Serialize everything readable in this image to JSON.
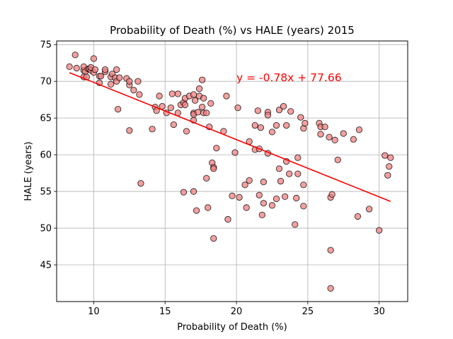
{
  "chart_data": {
    "type": "scatter",
    "title": "Probability of Death (%) vs HALE (years) 2015",
    "xlabel": "Probability of Death (%)",
    "ylabel": "HALE (years)",
    "xlim": [
      7.4,
      32.0
    ],
    "ylim": [
      40.0,
      75.5
    ],
    "xticks": [
      10,
      15,
      20,
      25,
      30
    ],
    "yticks": [
      45,
      50,
      55,
      60,
      65,
      70,
      75
    ],
    "grid": true,
    "marker_color": "#f08080",
    "marker_edge": "#000000",
    "line_color": "#ff0000",
    "annotation": {
      "text": "y = -0.78x + 77.66",
      "x": 20.0,
      "y": 70.0,
      "color": "#ff0000"
    },
    "regression": {
      "slope": -0.78,
      "intercept": 77.66,
      "x_range": [
        8.3,
        30.8
      ]
    },
    "points": [
      [
        8.3,
        72.0
      ],
      [
        8.7,
        73.6
      ],
      [
        8.8,
        71.8
      ],
      [
        9.3,
        71.5
      ],
      [
        9.3,
        72.0
      ],
      [
        9.4,
        71.3
      ],
      [
        9.3,
        70.6
      ],
      [
        9.5,
        70.6
      ],
      [
        9.6,
        71.7
      ],
      [
        9.7,
        71.7
      ],
      [
        9.8,
        71.5
      ],
      [
        9.8,
        71.9
      ],
      [
        10.0,
        71.2
      ],
      [
        10.0,
        73.1
      ],
      [
        10.1,
        71.6
      ],
      [
        10.4,
        70.7
      ],
      [
        10.5,
        70.7
      ],
      [
        10.4,
        69.8
      ],
      [
        10.8,
        71.3
      ],
      [
        10.8,
        71.6
      ],
      [
        11.2,
        70.6
      ],
      [
        11.2,
        69.6
      ],
      [
        11.3,
        71.0
      ],
      [
        11.5,
        70.5
      ],
      [
        11.6,
        71.6
      ],
      [
        11.6,
        70.0
      ],
      [
        11.7,
        66.2
      ],
      [
        11.8,
        70.5
      ],
      [
        12.3,
        70.4
      ],
      [
        12.5,
        69.5
      ],
      [
        12.5,
        70.0
      ],
      [
        12.5,
        63.3
      ],
      [
        12.8,
        68.8
      ],
      [
        13.1,
        70.0
      ],
      [
        13.2,
        68.2
      ],
      [
        13.3,
        56.1
      ],
      [
        14.1,
        63.5
      ],
      [
        14.3,
        66.5
      ],
      [
        14.4,
        66.0
      ],
      [
        14.6,
        68.0
      ],
      [
        14.8,
        66.6
      ],
      [
        15.1,
        65.7
      ],
      [
        15.4,
        66.4
      ],
      [
        15.5,
        68.3
      ],
      [
        15.6,
        64.1
      ],
      [
        15.9,
        68.3
      ],
      [
        15.9,
        65.7
      ],
      [
        16.1,
        66.8
      ],
      [
        16.3,
        54.9
      ],
      [
        16.3,
        67.1
      ],
      [
        16.4,
        66.8
      ],
      [
        16.4,
        67.7
      ],
      [
        16.5,
        63.2
      ],
      [
        16.7,
        68.0
      ],
      [
        17.0,
        68.2
      ],
      [
        17.0,
        65.7
      ],
      [
        17.0,
        65.5
      ],
      [
        17.0,
        64.7
      ],
      [
        17.0,
        55.0
      ],
      [
        17.1,
        67.4
      ],
      [
        17.2,
        52.4
      ],
      [
        17.3,
        65.8
      ],
      [
        17.4,
        68.0
      ],
      [
        17.4,
        69.0
      ],
      [
        17.6,
        70.2
      ],
      [
        17.6,
        66.5
      ],
      [
        17.7,
        67.7
      ],
      [
        17.7,
        65.7
      ],
      [
        17.9,
        56.8
      ],
      [
        17.9,
        65.7
      ],
      [
        18.0,
        52.8
      ],
      [
        18.1,
        63.8
      ],
      [
        18.2,
        67.0
      ],
      [
        18.3,
        58.9
      ],
      [
        18.4,
        58.3
      ],
      [
        18.4,
        58.1
      ],
      [
        18.4,
        48.6
      ],
      [
        18.6,
        60.9
      ],
      [
        19.1,
        63.2
      ],
      [
        19.3,
        68.0
      ],
      [
        19.4,
        51.2
      ],
      [
        19.7,
        54.4
      ],
      [
        19.9,
        60.3
      ],
      [
        20.1,
        66.4
      ],
      [
        20.2,
        54.2
      ],
      [
        20.6,
        55.9
      ],
      [
        20.7,
        52.8
      ],
      [
        20.9,
        61.8
      ],
      [
        20.9,
        56.5
      ],
      [
        21.3,
        64.0
      ],
      [
        21.3,
        60.7
      ],
      [
        21.6,
        60.8
      ],
      [
        21.5,
        66.0
      ],
      [
        21.6,
        54.5
      ],
      [
        21.7,
        63.7
      ],
      [
        21.8,
        51.8
      ],
      [
        21.9,
        56.3
      ],
      [
        21.9,
        53.4
      ],
      [
        22.2,
        65.8
      ],
      [
        22.2,
        65.4
      ],
      [
        22.2,
        60.2
      ],
      [
        22.5,
        63.1
      ],
      [
        22.5,
        53.1
      ],
      [
        22.8,
        54.0
      ],
      [
        22.8,
        64.0
      ],
      [
        23.0,
        66.1
      ],
      [
        23.1,
        56.4
      ],
      [
        23.0,
        58.1
      ],
      [
        23.3,
        66.6
      ],
      [
        23.4,
        54.3
      ],
      [
        23.5,
        64.0
      ],
      [
        23.5,
        59.1
      ],
      [
        23.7,
        57.4
      ],
      [
        23.8,
        65.9
      ],
      [
        24.1,
        50.5
      ],
      [
        24.2,
        54.1
      ],
      [
        24.3,
        59.6
      ],
      [
        24.3,
        57.4
      ],
      [
        24.5,
        65.1
      ],
      [
        24.7,
        63.6
      ],
      [
        24.7,
        55.9
      ],
      [
        24.8,
        64.3
      ],
      [
        24.7,
        53.0
      ],
      [
        25.8,
        64.3
      ],
      [
        25.9,
        63.8
      ],
      [
        25.9,
        62.8
      ],
      [
        26.2,
        63.8
      ],
      [
        26.5,
        62.4
      ],
      [
        26.6,
        54.2
      ],
      [
        26.6,
        47.0
      ],
      [
        26.6,
        41.8
      ],
      [
        26.7,
        54.6
      ],
      [
        26.9,
        62.0
      ],
      [
        27.1,
        59.3
      ],
      [
        27.5,
        62.9
      ],
      [
        28.2,
        62.1
      ],
      [
        28.5,
        51.6
      ],
      [
        28.6,
        63.4
      ],
      [
        29.3,
        52.6
      ],
      [
        30.0,
        49.7
      ],
      [
        30.4,
        59.9
      ],
      [
        30.6,
        57.2
      ],
      [
        30.7,
        58.4
      ],
      [
        30.8,
        59.6
      ]
    ]
  }
}
